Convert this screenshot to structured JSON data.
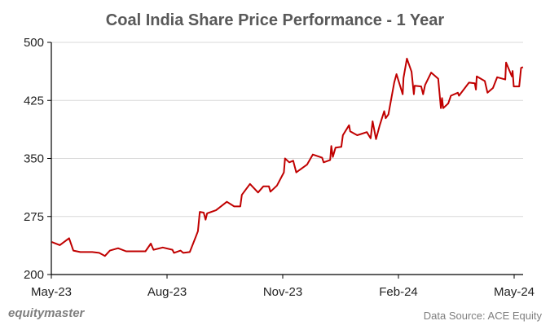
{
  "chart_data": {
    "type": "line",
    "title": "Coal India Share Price Performance - 1 Year",
    "xlabel": "",
    "ylabel": "",
    "x_unit": "months since May-23",
    "xlim": [
      0,
      12.23
    ],
    "ylim": [
      200,
      500
    ],
    "grid": true,
    "yticks": [
      "200",
      "275",
      "350",
      "425",
      "500"
    ],
    "ytick_values": [
      200,
      275,
      350,
      425,
      500
    ],
    "xticks": [
      "May-23",
      "Aug-23",
      "Nov-23",
      "Feb-24",
      "May-24"
    ],
    "xtick_values": [
      0,
      3,
      6,
      9,
      12
    ],
    "color": "#c00000",
    "series": [
      {
        "name": "Coal India",
        "x": [
          0.01,
          0.22,
          0.46,
          0.57,
          0.75,
          1.06,
          1.24,
          1.39,
          1.52,
          1.73,
          1.94,
          2.12,
          2.44,
          2.58,
          2.65,
          2.89,
          3.14,
          3.18,
          3.35,
          3.42,
          3.59,
          3.74,
          3.8,
          3.85,
          3.95,
          4.0,
          4.04,
          4.27,
          4.55,
          4.74,
          4.9,
          4.94,
          5.15,
          5.36,
          5.5,
          5.64,
          5.68,
          5.85,
          6.03,
          6.06,
          6.17,
          6.27,
          6.35,
          6.63,
          6.78,
          7.02,
          7.06,
          7.23,
          7.26,
          7.3,
          7.37,
          7.52,
          7.56,
          7.72,
          7.75,
          7.93,
          8.18,
          8.28,
          8.33,
          8.42,
          8.51,
          8.63,
          8.67,
          8.74,
          8.89,
          8.95,
          9.11,
          9.13,
          9.22,
          9.34,
          9.4,
          9.42,
          9.59,
          9.64,
          9.69,
          9.85,
          10.03,
          10.1,
          10.13,
          10.16,
          10.29,
          10.36,
          10.54,
          10.57,
          10.83,
          10.98,
          11.01,
          11.03,
          11.24,
          11.31,
          11.45,
          11.56,
          11.77,
          11.79,
          11.94,
          11.96,
          11.99,
          12.13,
          12.18,
          12.23
        ],
        "values": [
          242,
          238,
          247,
          231,
          229,
          229,
          228,
          224,
          231,
          234,
          230,
          230,
          230,
          240,
          232,
          235,
          232,
          228,
          231,
          228,
          229,
          248,
          256,
          281,
          280,
          271,
          279,
          283,
          294,
          288,
          288,
          303,
          317,
          306,
          314,
          314,
          307,
          315,
          332,
          350,
          345,
          347,
          332,
          342,
          355,
          351,
          345,
          348,
          366,
          352,
          364,
          365,
          380,
          393,
          385,
          380,
          384,
          376,
          398,
          375,
          392,
          411,
          402,
          407,
          448,
          459,
          433,
          454,
          479,
          462,
          433,
          444,
          443,
          433,
          445,
          461,
          453,
          415,
          428,
          415,
          421,
          431,
          435,
          431,
          448,
          447,
          439,
          456,
          450,
          435,
          441,
          455,
          452,
          474,
          456,
          463,
          443,
          443,
          467,
          468
        ]
      }
    ]
  },
  "footer": {
    "logo": "equitymaster",
    "source": "Data Source: ACE Equity"
  }
}
